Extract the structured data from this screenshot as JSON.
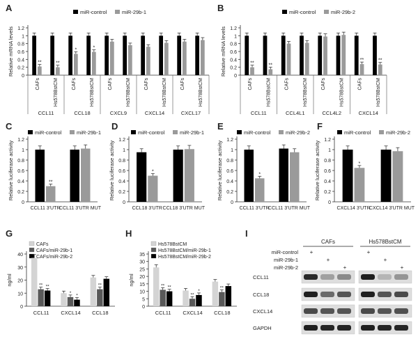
{
  "panels_text": {
    "a": "A",
    "b": "B",
    "c": "C",
    "d": "D",
    "e": "E",
    "f": "F",
    "g": "G",
    "h": "H",
    "i": "I"
  },
  "chart_data": [
    {
      "id": "A",
      "type": "bar",
      "ylabel": "Relative mRNA levels",
      "ylim": [
        0,
        1.2
      ],
      "yticks": [
        "0",
        "0.2",
        "0.4",
        "0.6",
        "0.8",
        "1",
        "1.2"
      ],
      "legend": [
        "miR-control",
        "miR-29b-1"
      ],
      "groups": [
        {
          "name": "CCL11",
          "items": [
            {
              "label": "CAFs",
              "control": 1.0,
              "treated": 0.22,
              "sig": "**"
            },
            {
              "label": "Hs578BstCM",
              "control": 1.0,
              "treated": 0.2,
              "sig": "**"
            }
          ]
        },
        {
          "name": "CCL18",
          "items": [
            {
              "label": "CAFs",
              "control": 1.0,
              "treated": 0.54,
              "sig": "*"
            },
            {
              "label": "Hs578BstCM",
              "control": 1.0,
              "treated": 0.59,
              "sig": "*"
            }
          ]
        },
        {
          "name": "CXCL9",
          "items": [
            {
              "label": "CAFs",
              "control": 1.0,
              "treated": 0.85,
              "sig": ""
            },
            {
              "label": "Hs578BstCM",
              "control": 1.0,
              "treated": 0.76,
              "sig": ""
            }
          ]
        },
        {
          "name": "CXCL14",
          "items": [
            {
              "label": "CAFs",
              "control": 1.0,
              "treated": 0.72,
              "sig": ""
            },
            {
              "label": "Hs578BstCM",
              "control": 1.0,
              "treated": 0.82,
              "sig": ""
            }
          ]
        },
        {
          "name": "CXCL17",
          "items": [
            {
              "label": "CAFs",
              "control": 1.0,
              "treated": 0.85,
              "sig": ""
            },
            {
              "label": "Hs578BstCM",
              "control": 1.0,
              "treated": 0.89,
              "sig": ""
            }
          ]
        }
      ]
    },
    {
      "id": "B",
      "type": "bar",
      "ylabel": "Relative mRNA levels",
      "ylim": [
        0,
        1.2
      ],
      "yticks": [
        "0",
        "0.2",
        "0.4",
        "0.6",
        "0.8",
        "1",
        "1.2"
      ],
      "legend": [
        "miR-control",
        "miR-29b-2"
      ],
      "groups": [
        {
          "name": "CCL11",
          "items": [
            {
              "label": "CAFs",
              "control": 1.0,
              "treated": 0.2,
              "sig": "**"
            },
            {
              "label": "Hs578BstCM",
              "control": 1.0,
              "treated": 0.15,
              "sig": "**"
            }
          ]
        },
        {
          "name": "CCL4L1",
          "items": [
            {
              "label": "CAFs",
              "control": 1.0,
              "treated": 0.8,
              "sig": ""
            },
            {
              "label": "Hs578BstCM",
              "control": 1.0,
              "treated": 0.82,
              "sig": ""
            }
          ]
        },
        {
          "name": "CCL4L2",
          "items": [
            {
              "label": "CAFs",
              "control": 1.0,
              "treated": 0.98,
              "sig": ""
            },
            {
              "label": "Hs578BstCM",
              "control": 1.0,
              "treated": 1.02,
              "sig": ""
            }
          ]
        },
        {
          "name": "CXCL14",
          "items": [
            {
              "label": "CAFs",
              "control": 1.0,
              "treated": 0.28,
              "sig": "**"
            },
            {
              "label": "Hs578BstCM",
              "control": 1.0,
              "treated": 0.27,
              "sig": "**"
            }
          ]
        }
      ]
    },
    {
      "id": "C",
      "type": "bar",
      "ylabel": "Relative luciferase activity",
      "ylim": [
        0,
        1.2
      ],
      "yticks": [
        "0",
        "0.2",
        "0.4",
        "0.6",
        "0.8",
        "1",
        "1.2"
      ],
      "legend": [
        "miR-control",
        "miR-29b-1"
      ],
      "categories": [
        "CCL11 3'UTR",
        "CCL11 3'UTR MUT"
      ],
      "control": [
        1.0,
        1.0
      ],
      "treated": [
        0.3,
        1.02
      ],
      "sig": [
        "**",
        ""
      ]
    },
    {
      "id": "D",
      "type": "bar",
      "ylabel": "Relative luciferase activity",
      "ylim": [
        0,
        1.2
      ],
      "yticks": [
        "0",
        "0.2",
        "0.4",
        "0.6",
        "0.8",
        "1",
        "1.2"
      ],
      "legend": [
        "miR-control",
        "miR-29b-1"
      ],
      "categories": [
        "CCL18 3'UTR",
        "CCL18 3'UTR MUT"
      ],
      "control": [
        0.95,
        1.0
      ],
      "treated": [
        0.5,
        1.01
      ],
      "sig": [
        "*",
        ""
      ]
    },
    {
      "id": "E",
      "type": "bar",
      "ylabel": "Relative luciferase activity",
      "ylim": [
        0,
        1.2
      ],
      "yticks": [
        "0",
        "0.2",
        "0.4",
        "0.6",
        "0.8",
        "1",
        "1.2"
      ],
      "legend": [
        "miR-control",
        "miR-29b-2"
      ],
      "categories": [
        "CCL11 3'UTR",
        "CCL11 3'UTR MUT"
      ],
      "control": [
        1.0,
        1.02
      ],
      "treated": [
        0.45,
        0.95
      ],
      "sig": [
        "*",
        ""
      ]
    },
    {
      "id": "F",
      "type": "bar",
      "ylabel": "Relative luciferase activity",
      "ylim": [
        0,
        1.2
      ],
      "yticks": [
        "0",
        "0.2",
        "0.4",
        "0.6",
        "0.8",
        "1",
        "1.2"
      ],
      "legend": [
        "miR-control",
        "miR-29b-2"
      ],
      "categories": [
        "CXCL14 3'UTR",
        "CXCL14 3'UTR MUT"
      ],
      "control": [
        1.0,
        1.0
      ],
      "treated": [
        0.65,
        0.97
      ],
      "sig": [
        "*",
        ""
      ]
    },
    {
      "id": "G",
      "type": "bar",
      "ylabel": "ng/ml",
      "ylim": [
        0,
        40
      ],
      "yticks": [
        "0",
        "10",
        "20",
        "30",
        "40"
      ],
      "categories": [
        "CCL11",
        "CXCL14",
        "CCL18"
      ],
      "series": [
        {
          "name": "CAFs",
          "values": [
            37,
            10,
            22
          ],
          "sig": [
            "",
            "",
            ""
          ]
        },
        {
          "name": "CAFs/miR-29b-1",
          "values": [
            13,
            7,
            13
          ],
          "sig": [
            "**",
            "*",
            "**"
          ]
        },
        {
          "name": "CAFs/miR-29b-2",
          "values": [
            12,
            5,
            21
          ],
          "sig": [
            "**",
            "*",
            ""
          ]
        }
      ]
    },
    {
      "id": "H",
      "type": "bar",
      "ylabel": "ng/ml",
      "ylim": [
        0,
        35
      ],
      "yticks": [
        "0",
        "5",
        "10",
        "15",
        "20",
        "25",
        "30",
        "35"
      ],
      "categories": [
        "CCL11",
        "CXCL14",
        "CCL18"
      ],
      "series": [
        {
          "name": "Hs578BstCM",
          "values": [
            26,
            10.5,
            16.5
          ],
          "sig": [
            "",
            "",
            ""
          ]
        },
        {
          "name": "Hs578BstCM/miR-29b-1",
          "values": [
            11,
            5,
            9.5
          ],
          "sig": [
            "**",
            "**",
            "**"
          ]
        },
        {
          "name": "Hs578BstCM/miR-29b-2",
          "values": [
            10,
            7.5,
            13.5
          ],
          "sig": [
            "**",
            "*",
            ""
          ]
        }
      ]
    }
  ],
  "western_blot": {
    "column_groups": [
      "CAFs",
      "Hs578BstCM"
    ],
    "rows_header": [
      "miR-control",
      "miR-29b-1",
      "miR-29b-2"
    ],
    "signs": [
      [
        "+",
        "",
        ""
      ],
      [
        "",
        "+",
        ""
      ],
      [
        "",
        "",
        "+"
      ]
    ],
    "proteins": [
      "CCL11",
      "CCL18",
      "CXCL14",
      "GAPDH"
    ]
  },
  "colors": {
    "control": "#000000",
    "treated": "#9a9a9a",
    "treated_light": "#9a9a9a",
    "series_light": "#d4d4d4",
    "series_mid": "#595959",
    "series_dark": "#000000"
  }
}
